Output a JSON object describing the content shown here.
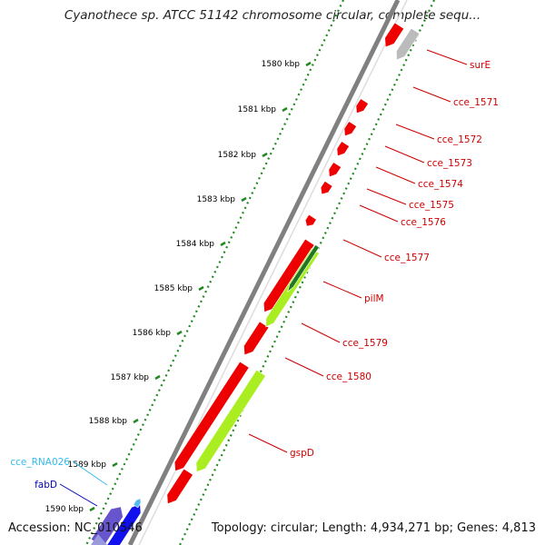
{
  "title": "Cyanothece sp. ATCC 51142 chromosome circular, complete sequ...",
  "footer": {
    "accession": "Accession: NC_010546",
    "summary": "Topology: circular; Length: 4,934,271 bp; Genes: 4,813"
  },
  "ticks": [
    "1580 kbp",
    "1581 kbp",
    "1582 kbp",
    "1583 kbp",
    "1584 kbp",
    "1585 kbp",
    "1586 kbp",
    "1587 kbp",
    "1588 kbp",
    "1589 kbp",
    "1590 kbp"
  ],
  "genes": [
    {
      "label": "surE",
      "color": "#cc0000",
      "feature": "gene"
    },
    {
      "label": "cce_1571",
      "color": "#cc0000",
      "feature": "gene"
    },
    {
      "label": "cce_1572",
      "color": "#cc0000",
      "feature": "gene"
    },
    {
      "label": "cce_1573",
      "color": "#cc0000",
      "feature": "gene"
    },
    {
      "label": "cce_1574",
      "color": "#cc0000",
      "feature": "gene"
    },
    {
      "label": "cce_1575",
      "color": "#cc0000",
      "feature": "gene"
    },
    {
      "label": "cce_1576",
      "color": "#cc0000",
      "feature": "gene"
    },
    {
      "label": "cce_1577",
      "color": "#cc0000",
      "feature": "gene"
    },
    {
      "label": "pilM",
      "color": "#cc0000",
      "feature": "gene"
    },
    {
      "label": "cce_1579",
      "color": "#cc0000",
      "feature": "gene"
    },
    {
      "label": "cce_1580",
      "color": "#cc0000",
      "feature": "gene"
    },
    {
      "label": "gspD",
      "color": "#cc0000",
      "feature": "gene"
    },
    {
      "label": "cce_RNA026",
      "color": "#33bbee",
      "feature": "rna"
    },
    {
      "label": "fabD",
      "color": "#0000bb",
      "feature": "gene"
    }
  ],
  "colors": {
    "backbone": "#808080",
    "cds_red": "#ee0000",
    "cds_light_green": "#aaee22",
    "cds_dark_green": "#227722",
    "cds_grey": "#bbbbbb",
    "cds_blue": "#1111ee",
    "cds_purple": "#6655cc",
    "cds_light_blue": "#55bbee",
    "tick_green": "#228822"
  }
}
